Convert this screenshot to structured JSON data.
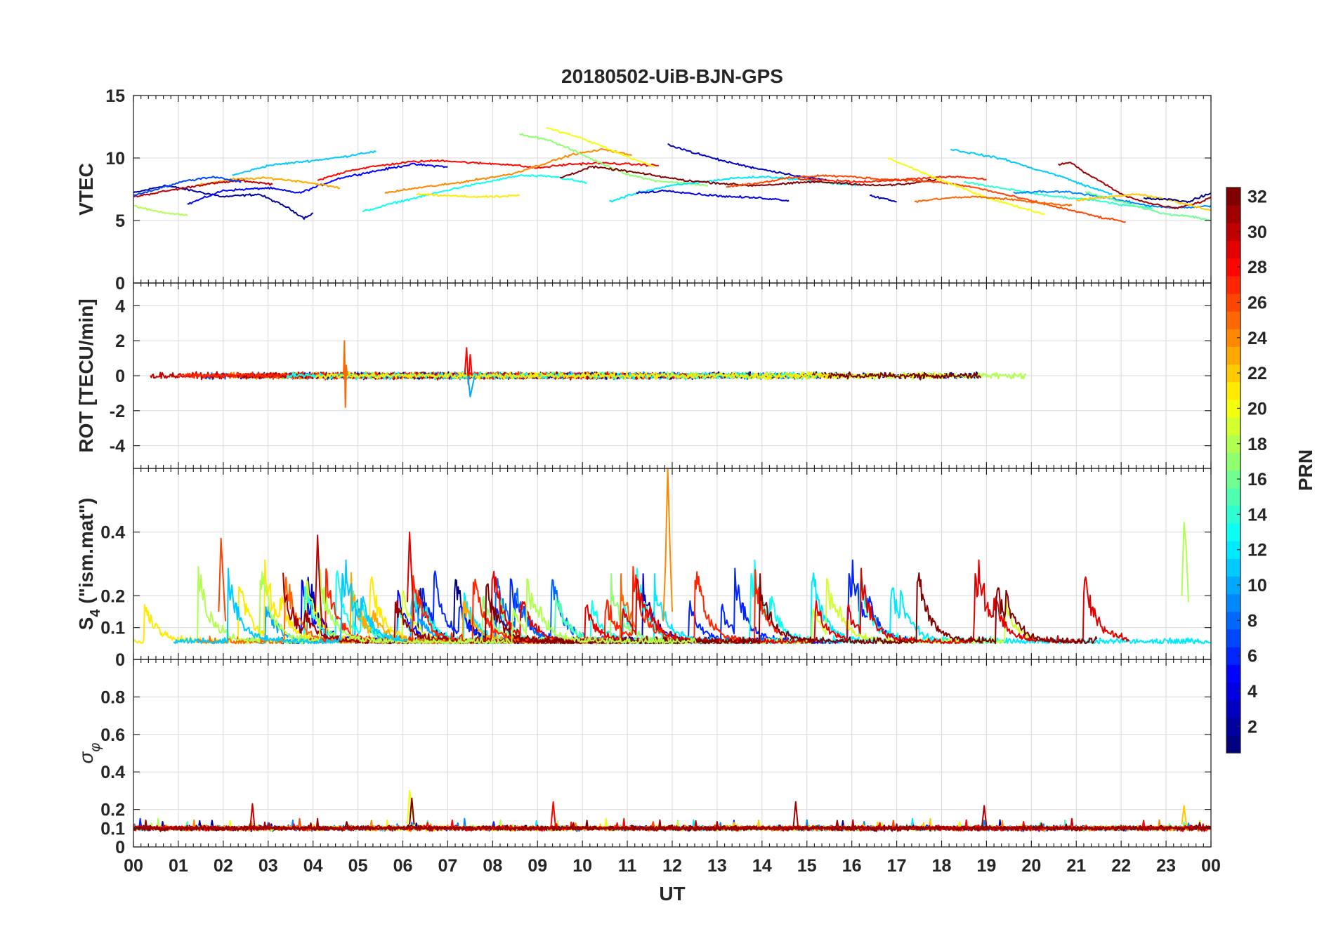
{
  "chart_data": {
    "type": "line",
    "title": "20180502-UiB-BJN-GPS",
    "xlabel": "UT",
    "x_tick_labels": [
      "00",
      "01",
      "02",
      "03",
      "04",
      "05",
      "06",
      "07",
      "08",
      "09",
      "10",
      "11",
      "12",
      "13",
      "14",
      "15",
      "16",
      "17",
      "18",
      "19",
      "20",
      "21",
      "22",
      "23",
      "00"
    ],
    "xlim": [
      0,
      24
    ],
    "grid": true,
    "panels": [
      {
        "id": "vtec",
        "ylabel": "VTEC",
        "ylim": [
          0,
          15
        ],
        "yticks": [
          0,
          5,
          10,
          15
        ],
        "series": [
          {
            "prn": 2,
            "x": [
              0,
              0.7,
              1.3,
              2,
              2.8,
              3.4,
              3.8,
              4.0
            ],
            "y": [
              7.2,
              7.8,
              7.4,
              6.9,
              7.1,
              6.1,
              5.2,
              5.6
            ]
          },
          {
            "prn": 5,
            "x": [
              1.2,
              2,
              3,
              3.7,
              4.6,
              5.3,
              6.2,
              7
            ],
            "y": [
              6.3,
              7.4,
              7.6,
              7.2,
              8.4,
              8.9,
              9.5,
              9.3
            ]
          },
          {
            "prn": 11,
            "x": [
              2.2,
              3,
              4,
              4.7,
              5.1,
              5.4
            ],
            "y": [
              8.6,
              9.4,
              9.8,
              10.1,
              10.4,
              10.5
            ]
          },
          {
            "prn": 23,
            "x": [
              1.4,
              2.2,
              3,
              3.8,
              4.6
            ],
            "y": [
              7.8,
              8.3,
              8.4,
              8.1,
              7.6
            ]
          },
          {
            "prn": 30,
            "x": [
              0,
              0.8,
              1.6,
              2.4,
              3.1
            ],
            "y": [
              6.9,
              7.4,
              7.9,
              8.2,
              7.9
            ]
          },
          {
            "prn": 18,
            "x": [
              0,
              0.4,
              0.8,
              1.2
            ],
            "y": [
              6.2,
              5.8,
              5.6,
              5.4
            ]
          },
          {
            "prn": 13,
            "x": [
              5.1,
              5.8,
              6.5,
              7.2,
              7.9,
              8.6,
              9.4,
              10.1
            ],
            "y": [
              5.7,
              6.4,
              7.0,
              7.6,
              8.1,
              8.6,
              8.5,
              8.0
            ]
          },
          {
            "prn": 21,
            "x": [
              6.3,
              6.9,
              7.5,
              8.1,
              8.6
            ],
            "y": [
              7.1,
              7.0,
              6.9,
              6.9,
              7.0
            ]
          },
          {
            "prn": 28,
            "x": [
              4.1,
              4.8,
              5.5,
              6.2,
              6.9,
              7.6,
              8.3,
              9.0,
              9.7,
              10.4,
              11.1,
              11.7
            ],
            "y": [
              8.2,
              9.0,
              9.4,
              9.7,
              9.8,
              9.6,
              9.5,
              9.2,
              9.5,
              9.6,
              9.5,
              9.4
            ]
          },
          {
            "prn": 24,
            "x": [
              5.6,
              6.3,
              7,
              7.7,
              8.4,
              9.1,
              9.8,
              10.5,
              11.1
            ],
            "y": [
              7.2,
              7.6,
              7.9,
              8.3,
              8.7,
              9.5,
              10.3,
              10.7,
              10.2
            ]
          },
          {
            "prn": 17,
            "x": [
              8.6,
              9.2,
              9.8,
              10.4,
              11,
              11.6,
              12.2,
              12.8
            ],
            "y": [
              11.9,
              11.5,
              10.6,
              9.6,
              8.7,
              8.2,
              8.0,
              7.8
            ]
          },
          {
            "prn": 20,
            "x": [
              9.2,
              9.8,
              10.4,
              11,
              11.6
            ],
            "y": [
              12.4,
              11.8,
              11.0,
              10.1,
              9.3
            ]
          },
          {
            "prn": 12,
            "x": [
              10.6,
              11.3,
              12,
              12.7,
              13.4,
              14.1,
              14.8,
              15.5,
              16.2
            ],
            "y": [
              6.5,
              7.3,
              7.8,
              8.1,
              8.4,
              8.5,
              8.3,
              8.0,
              7.8
            ]
          },
          {
            "prn": 3,
            "x": [
              11.9,
              12.5,
              13.1,
              13.7,
              14.3,
              14.9,
              15.5
            ],
            "y": [
              11.1,
              10.4,
              9.8,
              9.3,
              8.9,
              8.5,
              8.2
            ]
          },
          {
            "prn": 32,
            "x": [
              9.5,
              10.2,
              10.9,
              11.6,
              12.3,
              13,
              13.7,
              14.4,
              15.1,
              15.8,
              16.5,
              17.2,
              17.9
            ],
            "y": [
              8.4,
              9.3,
              9.0,
              8.6,
              8.2,
              8.0,
              7.8,
              7.9,
              8.1,
              8.0,
              7.8,
              7.9,
              8.3
            ]
          },
          {
            "prn": 4,
            "x": [
              11.2,
              11.9,
              12.6,
              13.3,
              14,
              14.6
            ],
            "y": [
              7.2,
              7.4,
              7.1,
              6.9,
              6.8,
              6.6
            ]
          },
          {
            "prn": 26,
            "x": [
              13.2,
              13.9,
              14.6,
              15.3,
              16,
              16.7,
              17.4,
              18.1,
              18.8,
              19.5,
              20.2,
              20.9,
              21.6,
              22.1
            ],
            "y": [
              7.7,
              8.0,
              8.4,
              8.6,
              8.5,
              8.3,
              8.2,
              8.0,
              7.6,
              7.0,
              6.4,
              5.8,
              5.2,
              4.9
            ]
          },
          {
            "prn": 27,
            "x": [
              14.8,
              15.5,
              16.2,
              16.9,
              17.6,
              18.3,
              19
            ],
            "y": [
              8.3,
              8.2,
              8.1,
              8.2,
              8.4,
              8.5,
              8.3
            ]
          },
          {
            "prn": 20,
            "x": [
              16.8,
              17.4,
              18,
              18.6,
              19.2,
              19.8,
              20.3
            ],
            "y": [
              10.0,
              9.1,
              8.2,
              7.4,
              6.6,
              6.0,
              5.5
            ]
          },
          {
            "prn": 3,
            "x": [
              16.4,
              16.8,
              17.0
            ],
            "y": [
              7.0,
              6.7,
              6.5
            ]
          },
          {
            "prn": 11,
            "x": [
              18.2,
              18.8,
              19.4,
              20,
              20.6,
              21.2,
              21.8
            ],
            "y": [
              10.7,
              10.3,
              9.9,
              9.2,
              8.6,
              7.8,
              7.1
            ]
          },
          {
            "prn": 14,
            "x": [
              18.5,
              19.1,
              19.7,
              20.3,
              20.9,
              21.5,
              22.1,
              22.7
            ],
            "y": [
              8.1,
              7.7,
              7.4,
              7.0,
              6.8,
              6.6,
              6.2,
              6.0
            ]
          },
          {
            "prn": 9,
            "x": [
              19.6,
              20.2,
              20.8,
              21.4,
              22,
              22.6,
              23.2,
              23.8,
              24
            ],
            "y": [
              7.2,
              7.3,
              7.3,
              7.0,
              6.6,
              6.2,
              6.0,
              6.1,
              6.2
            ]
          },
          {
            "prn": 31,
            "x": [
              20.6,
              20.9,
              21.2,
              21.6,
              22,
              22.6,
              23.2,
              23.8,
              24
            ],
            "y": [
              9.5,
              9.6,
              8.8,
              8.0,
              7.1,
              6.4,
              6.0,
              6.5,
              6.9
            ]
          },
          {
            "prn": 16,
            "x": [
              21.2,
              21.8,
              22.4,
              23,
              23.6,
              24
            ],
            "y": [
              7.3,
              6.7,
              6.1,
              5.5,
              5.3,
              5.0
            ]
          },
          {
            "prn": 22,
            "x": [
              21.0,
              21.7,
              22.4,
              23.1,
              23.7,
              24
            ],
            "y": [
              6.6,
              6.9,
              7.1,
              6.6,
              6.1,
              5.8
            ]
          },
          {
            "prn": 1,
            "x": [
              22.5,
              23,
              23.5,
              24
            ],
            "y": [
              6.8,
              6.7,
              6.5,
              7.2
            ]
          },
          {
            "prn": 25,
            "x": [
              17.4,
              18.1,
              18.8,
              19.5,
              20.2,
              20.9
            ],
            "y": [
              6.5,
              6.8,
              6.9,
              6.7,
              6.4,
              6.2
            ]
          },
          {
            "prn": 7,
            "x": [
              0,
              0.6,
              1.2,
              1.8,
              2.4
            ],
            "y": [
              7.0,
              7.6,
              8.2,
              8.5,
              8.1
            ]
          }
        ]
      },
      {
        "id": "rot",
        "ylabel": "ROT [TECU/min]",
        "ylim": [
          -5.3,
          5.3
        ],
        "yticks": [
          -4,
          -2,
          0,
          2,
          4
        ],
        "spikes": [
          {
            "prn": 25,
            "x": [
              4.68,
              4.7,
              4.72,
              4.74,
              4.76
            ],
            "y": [
              0.1,
              2.0,
              -1.8,
              0.6,
              0.0
            ]
          },
          {
            "prn": 28,
            "x": [
              7.38,
              7.42,
              7.46,
              7.5,
              7.54
            ],
            "y": [
              0.1,
              1.6,
              -0.5,
              1.2,
              0.0
            ]
          },
          {
            "prn": 10,
            "x": [
              7.45,
              7.5,
              7.55,
              7.6
            ],
            "y": [
              0.0,
              -1.2,
              -0.6,
              0.0
            ]
          }
        ]
      },
      {
        "id": "s4",
        "ylabel": "S4 (\"ism.mat\")",
        "ylabel_main": "S",
        "ylabel_sub": "4",
        "ylabel_rest": " (\"ism.mat\")",
        "ylim": [
          0,
          0.6
        ],
        "yticks": [
          0,
          0.1,
          0.2,
          0.4
        ],
        "tick_labels": [
          "0",
          "0.1",
          "0.2",
          "0.4"
        ],
        "spikes": [
          {
            "prn": 24,
            "x": [
              11.8,
              11.85,
              11.9,
              11.95,
              12.0
            ],
            "y": [
              0.12,
              0.3,
              0.6,
              0.35,
              0.15
            ]
          },
          {
            "prn": 18,
            "x": [
              23.35,
              23.4,
              23.45,
              23.5
            ],
            "y": [
              0.2,
              0.43,
              0.35,
              0.18
            ]
          },
          {
            "prn": 26,
            "x": [
              1.9,
              1.95,
              2.0,
              2.05
            ],
            "y": [
              0.15,
              0.38,
              0.25,
              0.12
            ]
          },
          {
            "prn": 30,
            "x": [
              4.05,
              4.1,
              4.15,
              4.2
            ],
            "y": [
              0.15,
              0.39,
              0.22,
              0.1
            ]
          },
          {
            "prn": 29,
            "x": [
              6.1,
              6.15,
              6.2,
              6.25
            ],
            "y": [
              0.18,
              0.4,
              0.25,
              0.12
            ]
          }
        ]
      },
      {
        "id": "sigma",
        "ylabel": "σφ",
        "ylabel_main": "σ",
        "ylabel_sub": "φ",
        "ylim": [
          0,
          1
        ],
        "yticks": [
          0,
          0.1,
          0.2,
          0.4,
          0.6,
          0.8
        ],
        "tick_labels": [
          "0",
          "0.1",
          "0.2",
          "0.4",
          "0.6",
          "0.8"
        ],
        "spikes": [
          {
            "prn": 20,
            "x": [
              6.1,
              6.15,
              6.2,
              6.25
            ],
            "y": [
              0.12,
              0.3,
              0.2,
              0.12
            ]
          },
          {
            "prn": 32,
            "x": [
              6.15,
              6.2,
              6.25
            ],
            "y": [
              0.12,
              0.26,
              0.12
            ]
          },
          {
            "prn": 30,
            "x": [
              2.6,
              2.65,
              2.7
            ],
            "y": [
              0.1,
              0.23,
              0.1
            ]
          },
          {
            "prn": 31,
            "x": [
              14.7,
              14.75,
              14.8
            ],
            "y": [
              0.11,
              0.24,
              0.11
            ]
          },
          {
            "prn": 28,
            "x": [
              9.3,
              9.35,
              9.4
            ],
            "y": [
              0.11,
              0.24,
              0.11
            ]
          },
          {
            "prn": 31,
            "x": [
              18.9,
              18.95,
              19.0
            ],
            "y": [
              0.11,
              0.22,
              0.11
            ]
          },
          {
            "prn": 22,
            "x": [
              23.35,
              23.4,
              23.45
            ],
            "y": [
              0.12,
              0.22,
              0.12
            ]
          }
        ]
      }
    ],
    "colorbar": {
      "label": "PRN",
      "colormap": "jet",
      "range": [
        1,
        32
      ],
      "ticks": [
        2,
        4,
        6,
        8,
        10,
        12,
        14,
        16,
        18,
        20,
        22,
        24,
        26,
        28,
        30,
        32
      ]
    }
  }
}
